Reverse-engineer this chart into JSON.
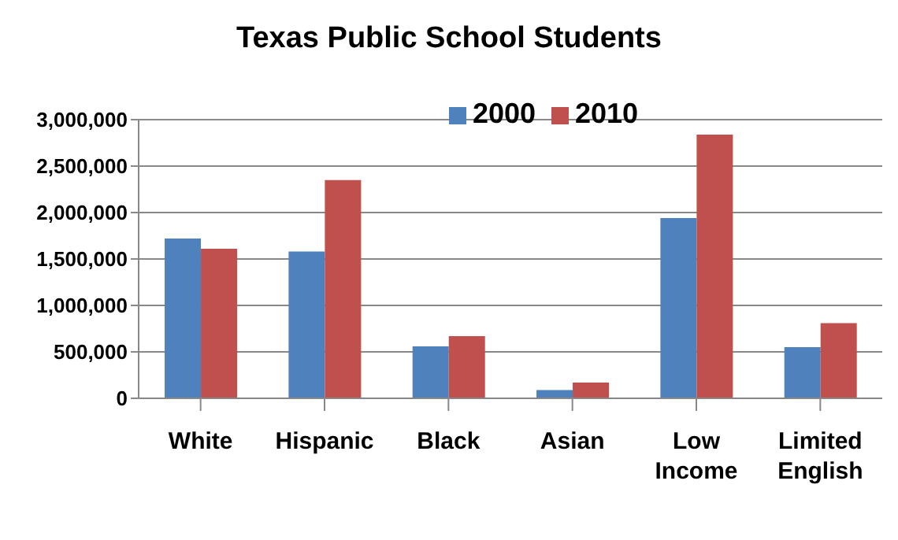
{
  "chart_data": {
    "type": "bar",
    "title": "Texas Public School Students",
    "categories": [
      "White",
      "Hispanic",
      "Black",
      "Asian",
      "Low Income",
      "Limited English"
    ],
    "series": [
      {
        "name": "2000",
        "color": "#4f81bd",
        "values": [
          1720000,
          1580000,
          560000,
          90000,
          1940000,
          550000
        ]
      },
      {
        "name": "2010",
        "color": "#c0504d",
        "values": [
          1610000,
          2350000,
          670000,
          170000,
          2840000,
          810000
        ]
      }
    ],
    "ylim": [
      0,
      3000000
    ],
    "yticks": [
      0,
      {
        "value": 500000,
        "label": "500,000"
      },
      {
        "value": 1000000,
        "label": "1,000,000"
      },
      {
        "value": 1500000,
        "label": "1,500,000"
      },
      {
        "value": 2000000,
        "label": "2,000,000"
      },
      {
        "value": 2500000,
        "label": "2,500,000"
      },
      {
        "value": 3000000,
        "label": "3,000,000"
      }
    ],
    "grid": "y",
    "legend": "top"
  }
}
